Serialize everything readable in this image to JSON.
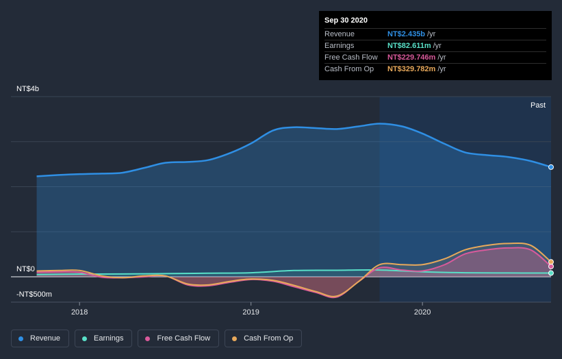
{
  "tooltip": {
    "date": "Sep 30 2020",
    "rows": [
      {
        "name": "Revenue",
        "value": "NT$2.435b",
        "unit": "/yr",
        "color": "#2f8fe4"
      },
      {
        "name": "Earnings",
        "value": "NT$82.611m",
        "unit": "/yr",
        "color": "#59e0c8"
      },
      {
        "name": "Free Cash Flow",
        "value": "NT$229.746m",
        "unit": "/yr",
        "color": "#d95a9b"
      },
      {
        "name": "Cash From Op",
        "value": "NT$329.782m",
        "unit": "/yr",
        "color": "#e8a95b"
      }
    ]
  },
  "legend": [
    {
      "label": "Revenue",
      "color": "#2f8fe4"
    },
    {
      "label": "Earnings",
      "color": "#59e0c8"
    },
    {
      "label": "Free Cash Flow",
      "color": "#d95a9b"
    },
    {
      "label": "Cash From Op",
      "color": "#e8a95b"
    }
  ],
  "chart_data": {
    "type": "line",
    "y_top_label": "NT$4b",
    "y_zero_label": "NT$0",
    "y_bottom_label": "-NT$500m",
    "past_label": "Past",
    "ylim": [
      -500,
      4000
    ],
    "xlim": [
      2017.6,
      2020.75
    ],
    "x_ticks": [
      {
        "value": 2018.0,
        "label": "2018"
      },
      {
        "value": 2019.0,
        "label": "2019"
      },
      {
        "value": 2020.0,
        "label": "2020"
      }
    ],
    "past_region_start": 2019.75,
    "grid": true,
    "series": [
      {
        "name": "Revenue",
        "color": "#2f8fe4",
        "x": [
          2017.75,
          2017.88,
          2018.0,
          2018.13,
          2018.25,
          2018.38,
          2018.5,
          2018.63,
          2018.75,
          2018.88,
          2019.0,
          2019.13,
          2019.25,
          2019.38,
          2019.5,
          2019.63,
          2019.75,
          2019.88,
          2020.0,
          2020.13,
          2020.25,
          2020.38,
          2020.5,
          2020.63,
          2020.75
        ],
        "values": [
          2230,
          2260,
          2280,
          2290,
          2310,
          2420,
          2530,
          2550,
          2590,
          2750,
          2960,
          3250,
          3320,
          3300,
          3280,
          3340,
          3400,
          3340,
          3180,
          2950,
          2760,
          2700,
          2660,
          2570,
          2435
        ]
      },
      {
        "name": "Earnings",
        "color": "#59e0c8",
        "x": [
          2017.75,
          2018.0,
          2018.25,
          2018.5,
          2018.75,
          2019.0,
          2019.25,
          2019.5,
          2019.75,
          2020.0,
          2020.25,
          2020.5,
          2020.75
        ],
        "values": [
          50,
          60,
          62,
          70,
          80,
          90,
          140,
          145,
          150,
          110,
          90,
          85,
          83
        ]
      },
      {
        "name": "Free Cash Flow",
        "color": "#d95a9b",
        "x": [
          2017.75,
          2017.88,
          2018.0,
          2018.13,
          2018.25,
          2018.38,
          2018.5,
          2018.63,
          2018.75,
          2018.88,
          2019.0,
          2019.13,
          2019.25,
          2019.38,
          2019.5,
          2019.63,
          2019.75,
          2019.88,
          2020.0,
          2020.13,
          2020.25,
          2020.38,
          2020.5,
          2020.63,
          2020.75
        ],
        "values": [
          100,
          110,
          100,
          -10,
          -20,
          0,
          20,
          -180,
          -200,
          -120,
          -60,
          -100,
          -220,
          -350,
          -450,
          -100,
          200,
          150,
          130,
          270,
          510,
          600,
          640,
          600,
          230
        ]
      },
      {
        "name": "Cash From Op",
        "color": "#e8a95b",
        "x": [
          2017.75,
          2017.88,
          2018.0,
          2018.13,
          2018.25,
          2018.38,
          2018.5,
          2018.63,
          2018.75,
          2018.88,
          2019.0,
          2019.13,
          2019.25,
          2019.38,
          2019.5,
          2019.63,
          2019.75,
          2019.88,
          2020.0,
          2020.13,
          2020.25,
          2020.38,
          2020.5,
          2020.63,
          2020.75
        ],
        "values": [
          130,
          140,
          140,
          20,
          -20,
          20,
          20,
          -160,
          -180,
          -100,
          -50,
          -80,
          -190,
          -330,
          -430,
          -100,
          270,
          270,
          270,
          400,
          600,
          700,
          740,
          700,
          330
        ]
      }
    ]
  }
}
